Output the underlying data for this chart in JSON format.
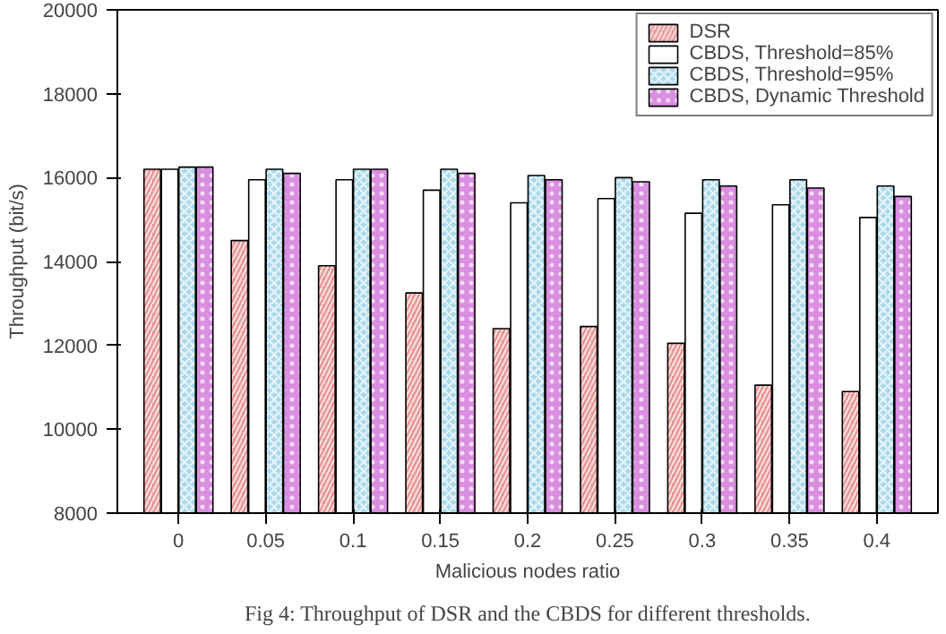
{
  "chart_data": {
    "type": "bar",
    "xlabel": "Malicious nodes ratio",
    "ylabel": "Throughput (bit/s)",
    "categories": [
      "0",
      "0.05",
      "0.1",
      "0.15",
      "0.2",
      "0.25",
      "0.3",
      "0.35",
      "0.4"
    ],
    "series": [
      {
        "name": "DSR",
        "color": "#e8918f",
        "values": [
          16200,
          14500,
          13900,
          13250,
          12400,
          12450,
          12050,
          11050,
          10900
        ]
      },
      {
        "name": "CBDS, Threshold=85%",
        "color": "#ffffff",
        "values": [
          16200,
          15950,
          15950,
          15700,
          15400,
          15500,
          15150,
          15350,
          15050
        ]
      },
      {
        "name": "CBDS, Threshold=95%",
        "color": "#a8d8ea",
        "values": [
          16250,
          16200,
          16200,
          16200,
          16050,
          16000,
          15950,
          15950,
          15800
        ]
      },
      {
        "name": "CBDS, Dynamic Threshold",
        "color": "#d98ee0",
        "values": [
          16250,
          16100,
          16200,
          16100,
          15950,
          15900,
          15800,
          15750,
          15550
        ]
      }
    ],
    "ylim": [
      8000,
      20000
    ],
    "yticks": [
      8000,
      10000,
      12000,
      14000,
      16000,
      18000,
      20000
    ],
    "legend": "top right",
    "annotations": [
      "Fig 4: Throughput of DSR and the CBDS for different thresholds."
    ]
  }
}
